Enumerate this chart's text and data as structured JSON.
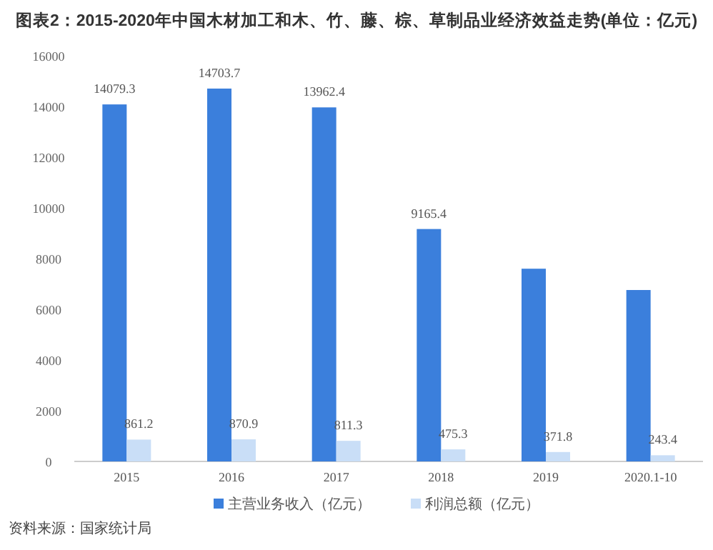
{
  "chart_data": {
    "type": "bar",
    "title": "图表2：2015-2020年中国木材加工和木、竹、藤、棕、草制品业经济效益走势(单位：亿元)",
    "categories": [
      "2015",
      "2016",
      "2017",
      "2018",
      "2019",
      "2020.1-10"
    ],
    "series": [
      {
        "name": "主营业务收入（亿元）",
        "color": "#3b7fdc",
        "values": [
          14079.3,
          14703.7,
          13962.4,
          9165.4,
          7600,
          6760
        ],
        "value_labels": [
          "14079.3",
          "14703.7",
          "13962.4",
          "9165.4",
          null,
          null
        ]
      },
      {
        "name": "利润总额（亿元）",
        "color": "#c9def7",
        "values": [
          861.2,
          870.9,
          811.3,
          475.3,
          371.8,
          243.4
        ],
        "value_labels": [
          "861.2",
          "870.9",
          "811.3",
          "475.3",
          "371.8",
          "243.4"
        ]
      }
    ],
    "ylim": [
      0,
      16000
    ],
    "yticks": [
      0,
      2000,
      4000,
      6000,
      8000,
      10000,
      12000,
      14000,
      16000
    ],
    "grid": false,
    "legend": "bottom",
    "annotations": [
      "资料来源：国家统计局"
    ]
  }
}
